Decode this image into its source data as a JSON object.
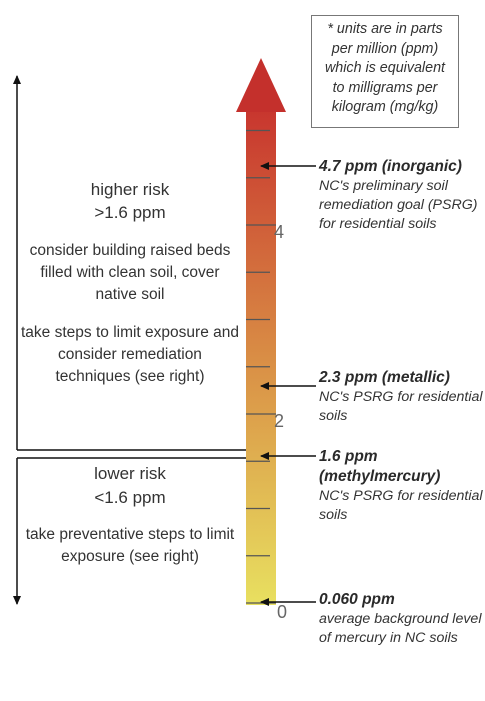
{
  "note": "* units are in parts per million (ppm) which is equivalent to milligrams per kilogram (mg/kg)",
  "higher_risk": {
    "title_line1": "higher risk",
    "title_line2": ">1.6 ppm",
    "paragraph1": "consider building raised beds filled with clean soil, cover native soil",
    "paragraph2": "take steps to limit exposure and consider remediation techniques (see right)"
  },
  "lower_risk": {
    "title_line1": "lower risk",
    "title_line2": "<1.6 ppm",
    "paragraph1": "take preventative steps to limit exposure (see right)"
  },
  "scale": {
    "min": 0,
    "max": 5,
    "labels": [
      "0",
      "2",
      "4"
    ],
    "gradient_colors": [
      "#e8e060",
      "#d98d45",
      "#c8352e"
    ]
  },
  "annotations": [
    {
      "value": 4.7,
      "value_label": "4.7 ppm (inorganic)",
      "description": "NC's preliminary soil remediation goal (PSRG) for residential soils"
    },
    {
      "value": 2.3,
      "value_label": "2.3 ppm (metallic)",
      "description": "NC's PSRG for residential soils"
    },
    {
      "value": 1.6,
      "value_label": "1.6 ppm (methylmercury)",
      "description": "NC's PSRG for residential soils"
    },
    {
      "value": 0.06,
      "value_label": "0.060 ppm",
      "description": "average background level of mercury in NC soils"
    }
  ]
}
